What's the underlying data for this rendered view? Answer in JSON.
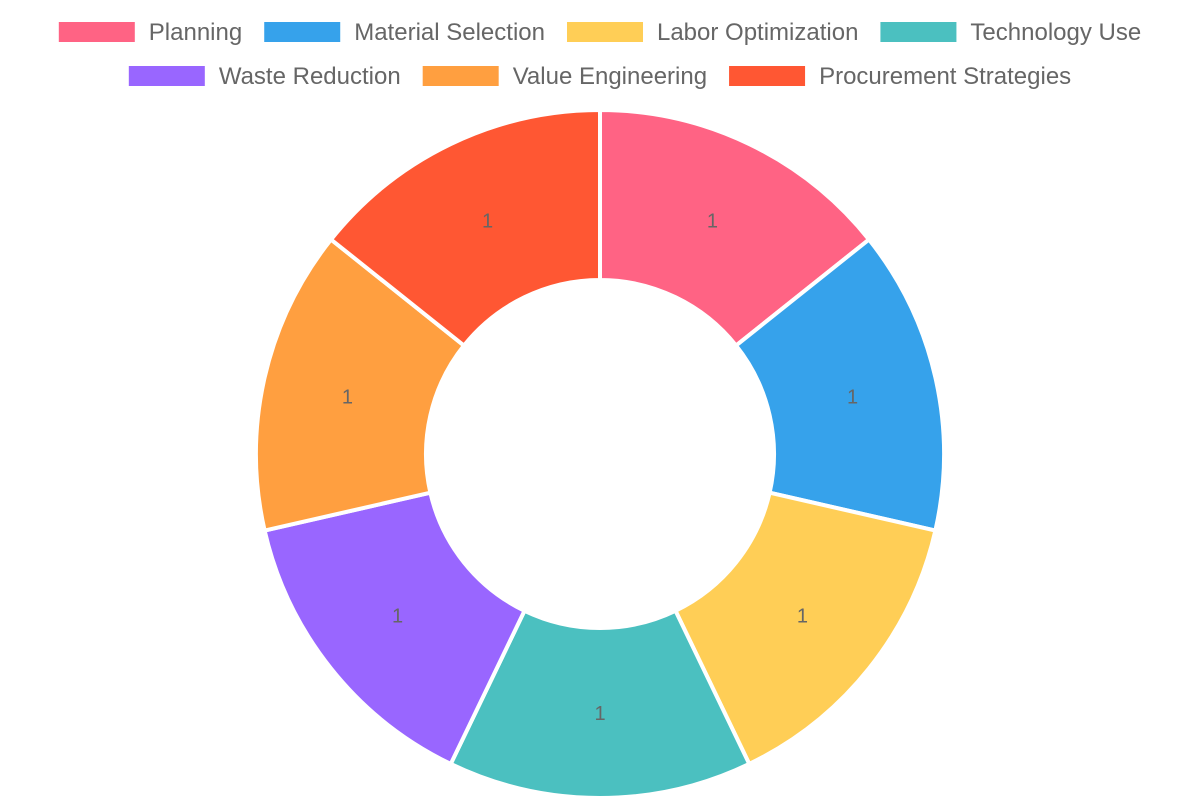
{
  "chart_data": {
    "type": "doughnut",
    "categories": [
      "Planning",
      "Material Selection",
      "Labor Optimization",
      "Technology Use",
      "Waste Reduction",
      "Value Engineering",
      "Procurement Strategies"
    ],
    "values": [
      1,
      1,
      1,
      1,
      1,
      1,
      1
    ],
    "colors": [
      "#ff6384",
      "#36a2eb",
      "#ffce56",
      "#4bc0c0",
      "#9966ff",
      "#ff9f40",
      "#ff5733"
    ],
    "legend_position": "top",
    "data_labels": true
  }
}
